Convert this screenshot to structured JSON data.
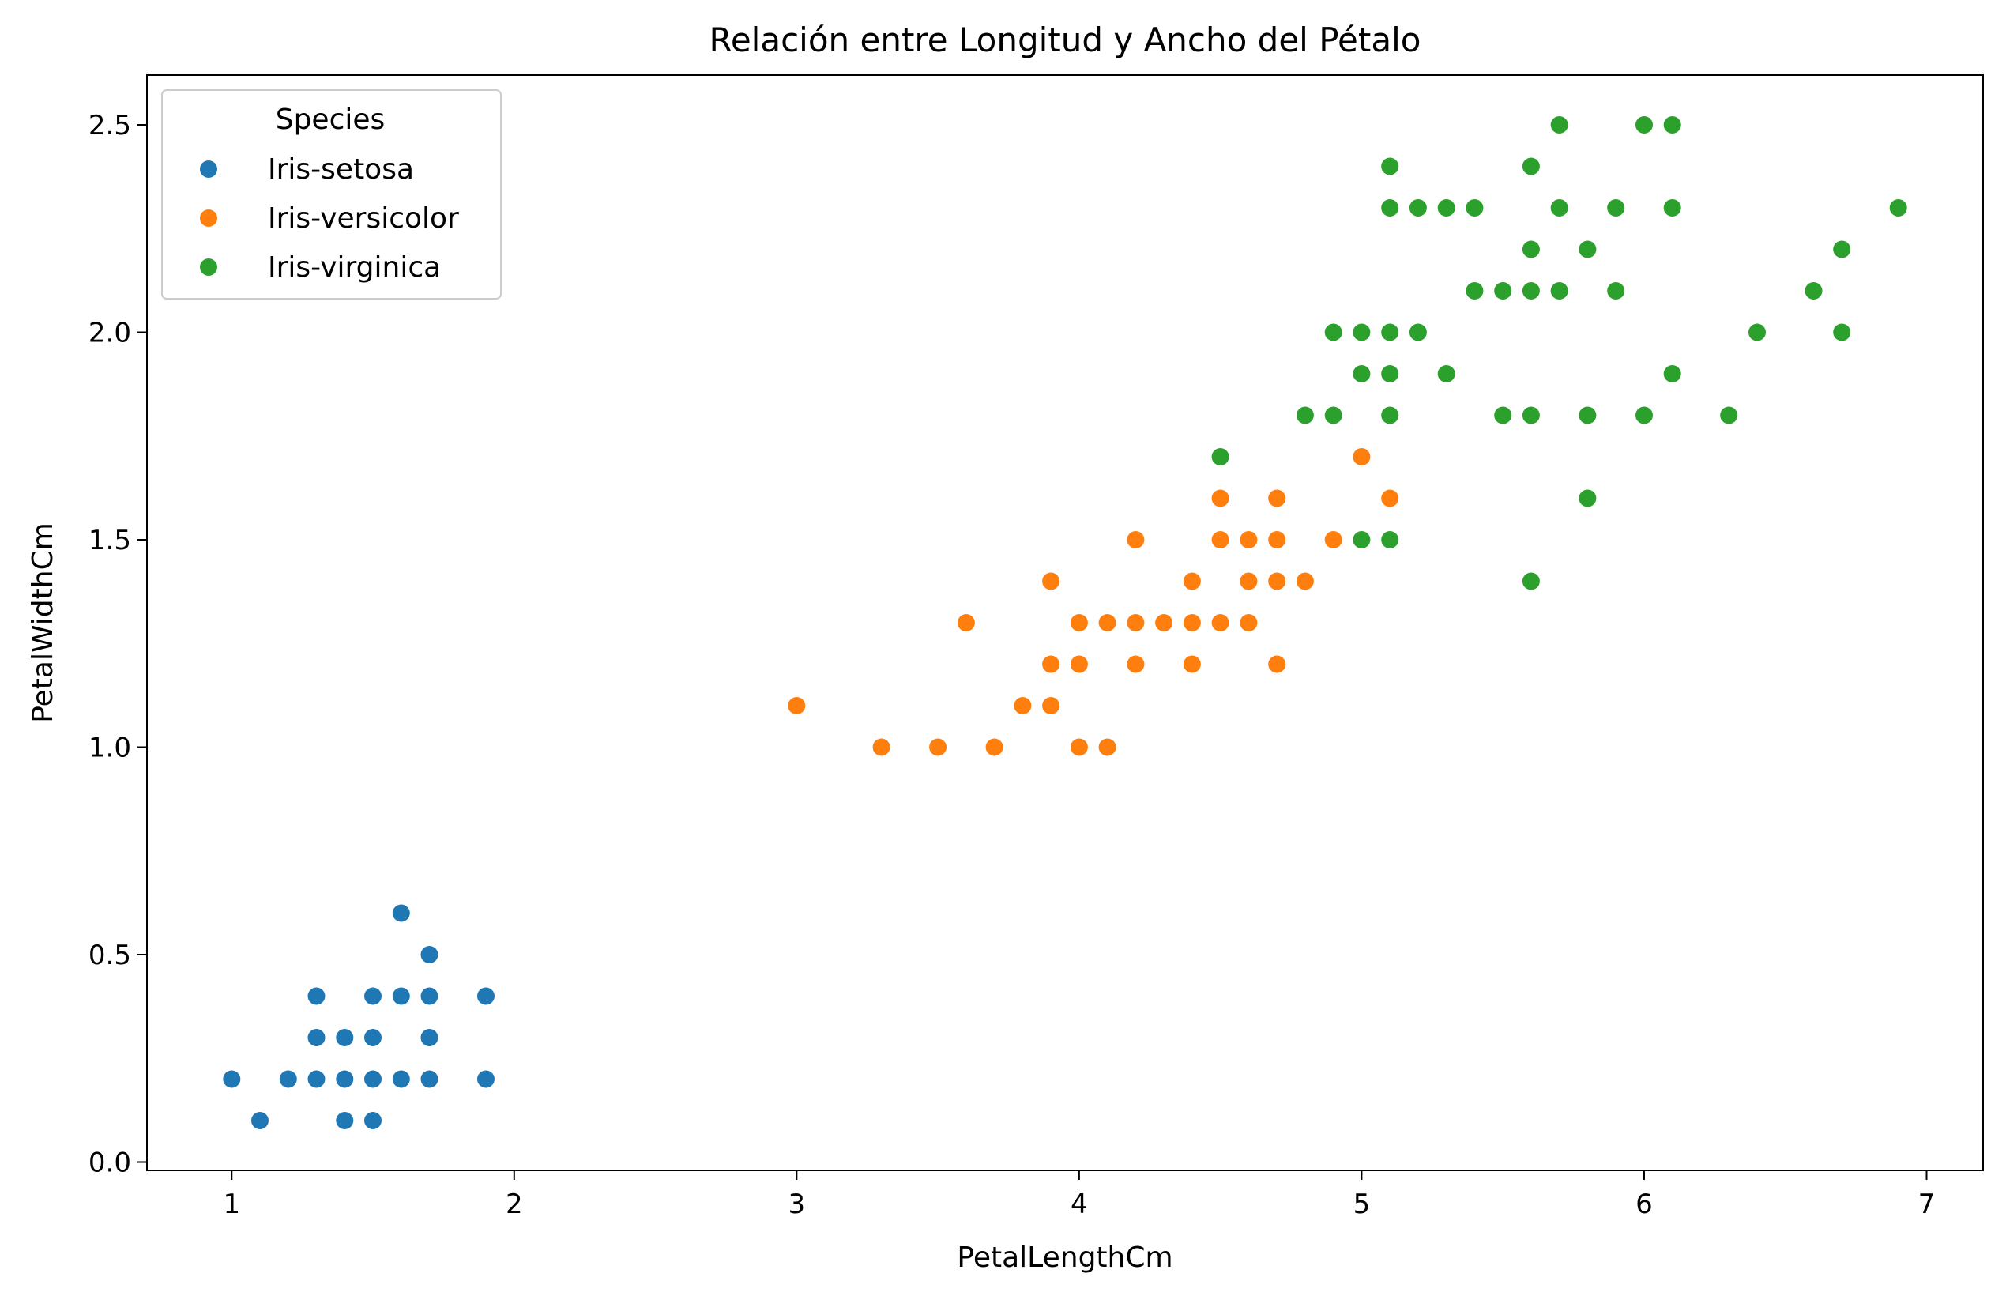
{
  "chart_data": {
    "type": "scatter",
    "title": "Relación entre Longitud y Ancho del Pétalo",
    "xlabel": "PetalLengthCm",
    "ylabel": "PetalWidthCm",
    "xlim": [
      0.7,
      7.2
    ],
    "ylim": [
      -0.02,
      2.62
    ],
    "xticks": [
      1,
      2,
      3,
      4,
      5,
      6,
      7
    ],
    "xtick_labels": [
      "1",
      "2",
      "3",
      "4",
      "5",
      "6",
      "7"
    ],
    "yticks": [
      0.0,
      0.5,
      1.0,
      1.5,
      2.0,
      2.5
    ],
    "ytick_labels": [
      "0.0",
      "0.5",
      "1.0",
      "1.5",
      "2.0",
      "2.5"
    ],
    "grid": false,
    "legend": {
      "title": "Species",
      "position": "top-left"
    },
    "series": [
      {
        "name": "Iris-setosa",
        "color": "#1f77b4",
        "points": [
          [
            1.0,
            0.2
          ],
          [
            1.1,
            0.1
          ],
          [
            1.2,
            0.2
          ],
          [
            1.3,
            0.2
          ],
          [
            1.3,
            0.3
          ],
          [
            1.3,
            0.4
          ],
          [
            1.4,
            0.1
          ],
          [
            1.4,
            0.2
          ],
          [
            1.4,
            0.3
          ],
          [
            1.5,
            0.1
          ],
          [
            1.5,
            0.2
          ],
          [
            1.5,
            0.3
          ],
          [
            1.5,
            0.4
          ],
          [
            1.6,
            0.2
          ],
          [
            1.6,
            0.4
          ],
          [
            1.6,
            0.6
          ],
          [
            1.7,
            0.2
          ],
          [
            1.7,
            0.3
          ],
          [
            1.7,
            0.4
          ],
          [
            1.7,
            0.5
          ],
          [
            1.9,
            0.2
          ],
          [
            1.9,
            0.4
          ]
        ]
      },
      {
        "name": "Iris-versicolor",
        "color": "#ff7f0e",
        "points": [
          [
            3.0,
            1.1
          ],
          [
            3.3,
            1.0
          ],
          [
            3.5,
            1.0
          ],
          [
            3.6,
            1.3
          ],
          [
            3.7,
            1.0
          ],
          [
            3.8,
            1.1
          ],
          [
            3.9,
            1.1
          ],
          [
            3.9,
            1.2
          ],
          [
            3.9,
            1.4
          ],
          [
            4.0,
            1.0
          ],
          [
            4.0,
            1.2
          ],
          [
            4.0,
            1.3
          ],
          [
            4.1,
            1.0
          ],
          [
            4.1,
            1.3
          ],
          [
            4.2,
            1.2
          ],
          [
            4.2,
            1.3
          ],
          [
            4.2,
            1.5
          ],
          [
            4.3,
            1.3
          ],
          [
            4.4,
            1.2
          ],
          [
            4.4,
            1.3
          ],
          [
            4.4,
            1.4
          ],
          [
            4.5,
            1.3
          ],
          [
            4.5,
            1.5
          ],
          [
            4.5,
            1.6
          ],
          [
            4.6,
            1.3
          ],
          [
            4.6,
            1.4
          ],
          [
            4.6,
            1.5
          ],
          [
            4.7,
            1.2
          ],
          [
            4.7,
            1.4
          ],
          [
            4.7,
            1.5
          ],
          [
            4.7,
            1.6
          ],
          [
            4.8,
            1.4
          ],
          [
            4.9,
            1.5
          ],
          [
            5.0,
            1.7
          ],
          [
            5.1,
            1.6
          ]
        ]
      },
      {
        "name": "Iris-virginica",
        "color": "#2ca02c",
        "points": [
          [
            4.5,
            1.7
          ],
          [
            4.8,
            1.8
          ],
          [
            4.9,
            1.8
          ],
          [
            4.9,
            2.0
          ],
          [
            5.0,
            1.5
          ],
          [
            5.0,
            1.9
          ],
          [
            5.0,
            2.0
          ],
          [
            5.1,
            1.5
          ],
          [
            5.1,
            1.8
          ],
          [
            5.1,
            1.9
          ],
          [
            5.1,
            2.0
          ],
          [
            5.1,
            2.3
          ],
          [
            5.1,
            2.4
          ],
          [
            5.2,
            2.0
          ],
          [
            5.2,
            2.3
          ],
          [
            5.3,
            1.9
          ],
          [
            5.3,
            2.3
          ],
          [
            5.4,
            2.1
          ],
          [
            5.4,
            2.3
          ],
          [
            5.5,
            1.8
          ],
          [
            5.5,
            2.1
          ],
          [
            5.6,
            1.4
          ],
          [
            5.6,
            1.8
          ],
          [
            5.6,
            2.1
          ],
          [
            5.6,
            2.2
          ],
          [
            5.6,
            2.4
          ],
          [
            5.7,
            2.1
          ],
          [
            5.7,
            2.3
          ],
          [
            5.7,
            2.5
          ],
          [
            5.8,
            1.6
          ],
          [
            5.8,
            1.8
          ],
          [
            5.8,
            2.2
          ],
          [
            5.9,
            2.1
          ],
          [
            5.9,
            2.3
          ],
          [
            6.0,
            1.8
          ],
          [
            6.0,
            2.5
          ],
          [
            6.1,
            1.9
          ],
          [
            6.1,
            2.3
          ],
          [
            6.1,
            2.5
          ],
          [
            6.3,
            1.8
          ],
          [
            6.4,
            2.0
          ],
          [
            6.6,
            2.1
          ],
          [
            6.7,
            2.0
          ],
          [
            6.7,
            2.2
          ],
          [
            6.9,
            2.3
          ]
        ]
      }
    ]
  }
}
